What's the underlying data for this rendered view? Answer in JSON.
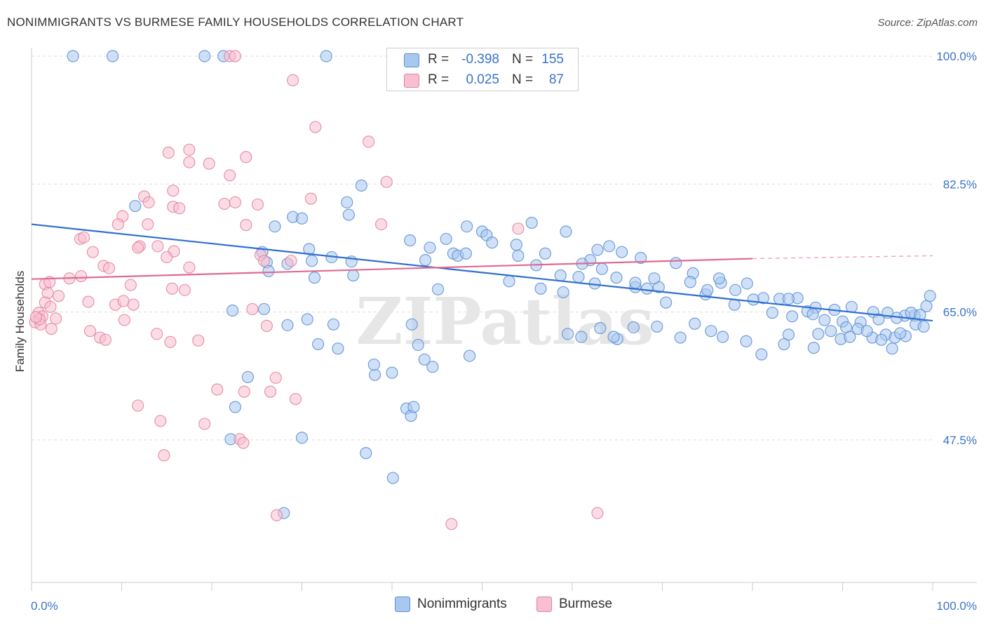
{
  "title": "NONIMMIGRANTS VS BURMESE FAMILY HOUSEHOLDS CORRELATION CHART",
  "source": "Source: ZipAtlas.com",
  "watermark": "ZIPatlas",
  "stats": [
    {
      "r_label": "R =",
      "r_value": "-0.398",
      "n_label": "N =",
      "n_value": "155",
      "color": "#a9c8f0",
      "border": "#5b8fd6"
    },
    {
      "r_label": "R =",
      "r_value": "0.025",
      "n_label": "N =",
      "n_value": "87",
      "color": "#f7bfd0",
      "border": "#e3829f"
    }
  ],
  "legend": [
    {
      "label": "Nonimmigrants",
      "color": "#a9c8f0",
      "border": "#5b8fd6"
    },
    {
      "label": "Burmese",
      "color": "#f7bfd0",
      "border": "#e3829f"
    }
  ],
  "chart_data": {
    "type": "scatter",
    "title": "NONIMMIGRANTS VS BURMESE FAMILY HOUSEHOLDS CORRELATION CHART",
    "xlabel": "",
    "ylabel": "Family Households",
    "xlim": [
      0,
      100
    ],
    "ylim": [
      28,
      100
    ],
    "x_tick_labels": [
      "0.0%",
      "100.0%"
    ],
    "y_ticks": [
      47.5,
      65.0,
      82.5,
      100.0
    ],
    "y_tick_labels": [
      "47.5%",
      "65.0%",
      "82.5%",
      "100.0%"
    ],
    "grid": true,
    "legend_position": "bottom",
    "series": [
      {
        "name": "Nonimmigrants",
        "color": "#5b8fd6",
        "fill": "#a9c8f0",
        "trend": {
          "x": [
            0,
            100
          ],
          "y": [
            77.0,
            63.8
          ]
        },
        "points": [
          [
            4.6,
            100
          ],
          [
            9.0,
            100
          ],
          [
            19.2,
            100
          ],
          [
            21.3,
            100
          ],
          [
            32.7,
            100
          ],
          [
            11.5,
            79.5
          ],
          [
            35.2,
            78.3
          ],
          [
            29.0,
            78.0
          ],
          [
            30.0,
            77.8
          ],
          [
            35.0,
            80.0
          ],
          [
            36.6,
            82.3
          ],
          [
            27.0,
            76.7
          ],
          [
            48.3,
            76.7
          ],
          [
            46.0,
            75.0
          ],
          [
            42.0,
            74.8
          ],
          [
            44.2,
            73.8
          ],
          [
            25.6,
            73.2
          ],
          [
            28.4,
            71.6
          ],
          [
            31.1,
            72.0
          ],
          [
            26.1,
            71.8
          ],
          [
            31.4,
            69.7
          ],
          [
            26.3,
            70.6
          ],
          [
            30.8,
            73.6
          ],
          [
            33.3,
            72.5
          ],
          [
            35.5,
            71.9
          ],
          [
            35.7,
            70.0
          ],
          [
            43.7,
            72.1
          ],
          [
            42.2,
            63.3
          ],
          [
            45.1,
            68.1
          ],
          [
            50.0,
            76.0
          ],
          [
            50.5,
            75.5
          ],
          [
            51.1,
            74.5
          ],
          [
            46.8,
            73.0
          ],
          [
            47.3,
            72.7
          ],
          [
            48.2,
            73.0
          ],
          [
            53.8,
            74.2
          ],
          [
            55.5,
            77.2
          ],
          [
            54.0,
            72.7
          ],
          [
            59.3,
            76.0
          ],
          [
            62.8,
            73.5
          ],
          [
            57.0,
            73.0
          ],
          [
            56.0,
            71.4
          ],
          [
            58.7,
            70.0
          ],
          [
            60.7,
            69.8
          ],
          [
            62.0,
            72.1
          ],
          [
            63.3,
            70.9
          ],
          [
            65.5,
            73.2
          ],
          [
            67.6,
            72.4
          ],
          [
            64.1,
            74.0
          ],
          [
            61.1,
            71.6
          ],
          [
            67.0,
            68.4
          ],
          [
            68.3,
            68.2
          ],
          [
            69.6,
            68.4
          ],
          [
            70.4,
            66.3
          ],
          [
            73.4,
            70.3
          ],
          [
            76.5,
            69.0
          ],
          [
            74.8,
            67.4
          ],
          [
            78.1,
            68.0
          ],
          [
            79.4,
            68.9
          ],
          [
            81.2,
            66.9
          ],
          [
            83.0,
            66.8
          ],
          [
            85.0,
            66.9
          ],
          [
            87.0,
            65.6
          ],
          [
            89.1,
            65.3
          ],
          [
            91.0,
            65.7
          ],
          [
            93.4,
            65.0
          ],
          [
            95.0,
            64.9
          ],
          [
            96.9,
            64.5
          ],
          [
            98.0,
            64.5
          ],
          [
            99.3,
            65.8
          ],
          [
            99.7,
            67.2
          ],
          [
            53.0,
            69.2
          ],
          [
            56.5,
            68.2
          ],
          [
            59.0,
            67.7
          ],
          [
            62.5,
            68.9
          ],
          [
            64.9,
            69.7
          ],
          [
            67.0,
            69.0
          ],
          [
            69.1,
            69.6
          ],
          [
            71.5,
            71.7
          ],
          [
            73.1,
            69.1
          ],
          [
            75.0,
            68.0
          ],
          [
            76.3,
            69.6
          ],
          [
            78.0,
            66.0
          ],
          [
            80.1,
            66.7
          ],
          [
            82.2,
            64.9
          ],
          [
            84.0,
            66.8
          ],
          [
            86.1,
            65.1
          ],
          [
            88.0,
            63.9
          ],
          [
            90.0,
            63.7
          ],
          [
            92.0,
            63.6
          ],
          [
            94.0,
            64.0
          ],
          [
            96.0,
            64.2
          ],
          [
            97.6,
            64.9
          ],
          [
            98.6,
            64.6
          ],
          [
            79.3,
            61.0
          ],
          [
            75.4,
            62.4
          ],
          [
            73.6,
            63.4
          ],
          [
            72.0,
            61.5
          ],
          [
            69.4,
            63.0
          ],
          [
            65.0,
            61.3
          ],
          [
            64.6,
            61.6
          ],
          [
            63.1,
            62.8
          ],
          [
            61.0,
            61.6
          ],
          [
            59.5,
            62.0
          ],
          [
            66.8,
            62.9
          ],
          [
            84.4,
            64.4
          ],
          [
            86.7,
            64.7
          ],
          [
            88.7,
            62.4
          ],
          [
            90.4,
            62.9
          ],
          [
            91.7,
            62.7
          ],
          [
            93.3,
            61.5
          ],
          [
            94.8,
            61.9
          ],
          [
            95.8,
            61.5
          ],
          [
            97.0,
            61.7
          ],
          [
            95.5,
            60.0
          ],
          [
            81.0,
            59.2
          ],
          [
            86.8,
            60.1
          ],
          [
            76.7,
            61.6
          ],
          [
            84.0,
            61.9
          ],
          [
            83.5,
            60.6
          ],
          [
            89.8,
            61.3
          ],
          [
            87.3,
            62.0
          ],
          [
            90.8,
            61.6
          ],
          [
            92.7,
            62.4
          ],
          [
            94.3,
            61.2
          ],
          [
            96.4,
            62.1
          ],
          [
            98.1,
            63.3
          ],
          [
            99.0,
            63.0
          ],
          [
            42.9,
            60.5
          ],
          [
            48.6,
            59.0
          ],
          [
            44.5,
            57.5
          ],
          [
            38.1,
            56.4
          ],
          [
            40.0,
            56.7
          ],
          [
            41.6,
            51.8
          ],
          [
            42.1,
            50.8
          ],
          [
            24.0,
            56.1
          ],
          [
            22.6,
            52.0
          ],
          [
            22.1,
            47.6
          ],
          [
            25.8,
            65.4
          ],
          [
            22.3,
            65.2
          ],
          [
            28.4,
            63.2
          ],
          [
            30.6,
            64.0
          ],
          [
            31.8,
            60.6
          ],
          [
            33.5,
            63.3
          ],
          [
            34.0,
            60.0
          ],
          [
            42.4,
            52.0
          ],
          [
            38.0,
            57.8
          ],
          [
            43.6,
            58.5
          ],
          [
            30.0,
            47.8
          ],
          [
            37.1,
            45.7
          ],
          [
            40.1,
            42.3
          ],
          [
            28.0,
            37.5
          ]
        ]
      },
      {
        "name": "Burmese",
        "color": "#e3829f",
        "fill": "#f7bfd0",
        "trend": {
          "x": [
            0,
            80
          ],
          "y": [
            69.5,
            72.3
          ],
          "dashed_x": [
            80,
            100
          ],
          "dashed_y": [
            72.3,
            72.7
          ]
        },
        "points": [
          [
            22.0,
            100
          ],
          [
            22.6,
            100
          ],
          [
            29.0,
            96.7
          ],
          [
            31.5,
            90.3
          ],
          [
            37.4,
            88.3
          ],
          [
            15.2,
            86.8
          ],
          [
            17.5,
            87.2
          ],
          [
            17.5,
            85.5
          ],
          [
            19.7,
            85.3
          ],
          [
            23.8,
            86.2
          ],
          [
            22.0,
            83.7
          ],
          [
            39.4,
            82.8
          ],
          [
            15.7,
            81.6
          ],
          [
            12.5,
            80.8
          ],
          [
            13.0,
            80.0
          ],
          [
            15.7,
            79.4
          ],
          [
            16.4,
            79.2
          ],
          [
            21.4,
            79.8
          ],
          [
            22.6,
            80.0
          ],
          [
            25.1,
            79.7
          ],
          [
            31.0,
            80.5
          ],
          [
            10.1,
            78.1
          ],
          [
            9.6,
            77.0
          ],
          [
            12.9,
            77.0
          ],
          [
            23.8,
            76.9
          ],
          [
            38.8,
            77.0
          ],
          [
            54.0,
            76.4
          ],
          [
            5.4,
            75.0
          ],
          [
            5.8,
            75.2
          ],
          [
            12.0,
            74.0
          ],
          [
            14.0,
            74.0
          ],
          [
            15.8,
            73.3
          ],
          [
            11.8,
            73.8
          ],
          [
            6.8,
            73.2
          ],
          [
            15.0,
            72.5
          ],
          [
            25.4,
            72.8
          ],
          [
            25.8,
            72.0
          ],
          [
            28.8,
            72.0
          ],
          [
            8.0,
            71.3
          ],
          [
            8.6,
            71.0
          ],
          [
            17.5,
            71.1
          ],
          [
            1.5,
            68.8
          ],
          [
            2.0,
            69.1
          ],
          [
            4.2,
            69.6
          ],
          [
            5.5,
            69.9
          ],
          [
            11.0,
            68.7
          ],
          [
            15.6,
            68.2
          ],
          [
            17.0,
            68.0
          ],
          [
            1.8,
            67.6
          ],
          [
            3.0,
            67.2
          ],
          [
            6.3,
            66.4
          ],
          [
            9.3,
            66.0
          ],
          [
            10.2,
            66.5
          ],
          [
            11.3,
            66.0
          ],
          [
            1.5,
            66.3
          ],
          [
            2.1,
            65.7
          ],
          [
            0.8,
            64.9
          ],
          [
            1.2,
            64.4
          ],
          [
            2.7,
            64.1
          ],
          [
            0.4,
            63.6
          ],
          [
            1.0,
            63.3
          ],
          [
            0.9,
            64.0
          ],
          [
            0.5,
            64.3
          ],
          [
            6.5,
            62.4
          ],
          [
            7.6,
            61.5
          ],
          [
            8.2,
            61.2
          ],
          [
            10.3,
            63.9
          ],
          [
            13.9,
            62.0
          ],
          [
            15.4,
            60.9
          ],
          [
            18.5,
            61.1
          ],
          [
            26.1,
            63.1
          ],
          [
            29.3,
            53.1
          ],
          [
            20.6,
            54.4
          ],
          [
            23.6,
            54.1
          ],
          [
            11.8,
            52.2
          ],
          [
            14.3,
            50.1
          ],
          [
            14.7,
            45.4
          ],
          [
            19.2,
            49.7
          ],
          [
            23.1,
            47.6
          ],
          [
            23.5,
            47.1
          ],
          [
            26.5,
            54.1
          ],
          [
            27.1,
            56.0
          ],
          [
            27.2,
            37.2
          ],
          [
            24.5,
            65.4
          ],
          [
            46.6,
            36.0
          ],
          [
            62.8,
            37.5
          ],
          [
            2.2,
            62.7
          ]
        ]
      }
    ]
  }
}
